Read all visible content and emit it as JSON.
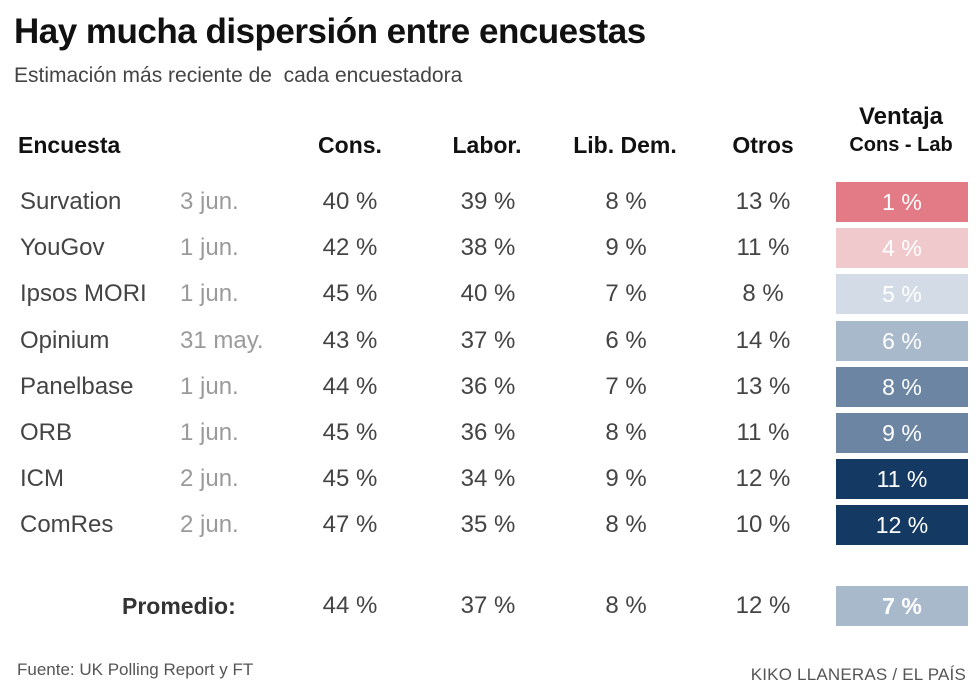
{
  "chart_data": {
    "type": "table",
    "title": "Hay mucha dispersión entre encuestas",
    "subtitle": "Estimación más reciente de  cada encuestadora",
    "columns": {
      "pollster": "Encuesta",
      "cons": "Cons.",
      "labor": "Labor.",
      "libdem": "Lib. Dem.",
      "otros": "Otros",
      "adv_line1": "Ventaja",
      "adv_line2": "Cons - Lab"
    },
    "rows": [
      {
        "pollster": "Survation",
        "date": "3 jun.",
        "cons": "40 %",
        "labor": "39 %",
        "libdem": "8 %",
        "otros": "13 %",
        "lead": "1 %",
        "lead_value": 1,
        "color": "#e27b86",
        "text_color": "#ffffff"
      },
      {
        "pollster": "YouGov",
        "date": "1 jun.",
        "cons": "42 %",
        "labor": "38 %",
        "libdem": "9 %",
        "otros": "11 %",
        "lead": "4 %",
        "lead_value": 4,
        "color": "#f0c9cd",
        "text_color": "#ffffff"
      },
      {
        "pollster": "Ipsos MORI",
        "date": "1 jun.",
        "cons": "45 %",
        "labor": "40 %",
        "libdem": "7 %",
        "otros": "8 %",
        "lead": "5 %",
        "lead_value": 5,
        "color": "#d3dce6",
        "text_color": "#ffffff"
      },
      {
        "pollster": "Opinium",
        "date": "31 may.",
        "cons": "43 %",
        "labor": "37 %",
        "libdem": "6 %",
        "otros": "14 %",
        "lead": "6 %",
        "lead_value": 6,
        "color": "#a9b9cc",
        "text_color": "#ffffff"
      },
      {
        "pollster": "Panelbase",
        "date": "1 jun.",
        "cons": "44 %",
        "labor": "36 %",
        "libdem": "7 %",
        "otros": "13 %",
        "lead": "8 %",
        "lead_value": 8,
        "color": "#6b85a3",
        "text_color": "#ffffff"
      },
      {
        "pollster": "ORB",
        "date": "1 jun.",
        "cons": "45 %",
        "labor": "36 %",
        "libdem": "8 %",
        "otros": "11 %",
        "lead": "9 %",
        "lead_value": 9,
        "color": "#6b85a3",
        "text_color": "#ffffff"
      },
      {
        "pollster": "ICM",
        "date": "2 jun.",
        "cons": "45 %",
        "labor": "34 %",
        "libdem": "9 %",
        "otros": "12 %",
        "lead": "11 %",
        "lead_value": 11,
        "color": "#143a63",
        "text_color": "#ffffff"
      },
      {
        "pollster": "ComRes",
        "date": "2 jun.",
        "cons": "47 %",
        "labor": "35 %",
        "libdem": "8 %",
        "otros": "10 %",
        "lead": "12 %",
        "lead_value": 12,
        "color": "#143a63",
        "text_color": "#ffffff"
      }
    ],
    "average": {
      "label": "Promedio:",
      "cons": "44 %",
      "labor": "37 %",
      "libdem": "8 %",
      "otros": "12 %",
      "lead": "7 %",
      "lead_value": 7,
      "color": "#a9b9cc",
      "text_color": "#ffffff"
    }
  },
  "footer": {
    "source": "Fuente: UK Polling Report y FT",
    "credit": "KIKO LLANERAS / EL PAÍS"
  }
}
